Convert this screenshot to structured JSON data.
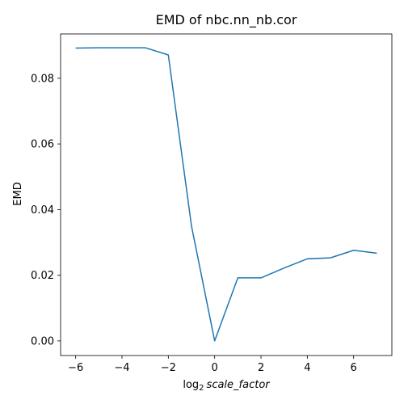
{
  "chart_data": {
    "type": "line",
    "title": "EMD of nbc.nn_nb.cor",
    "xlabel": {
      "prefix": "log",
      "subscript": "2",
      "italic": "scale_factor"
    },
    "ylabel": "EMD",
    "xlim": [
      -6.65,
      7.65
    ],
    "ylim": [
      -0.00445,
      0.0935
    ],
    "xticks": [
      -6,
      -4,
      -2,
      0,
      2,
      4,
      6
    ],
    "xtick_labels": [
      "−6",
      "−4",
      "−2",
      "0",
      "2",
      "4",
      "6"
    ],
    "yticks": [
      0.0,
      0.02,
      0.04,
      0.06,
      0.08
    ],
    "ytick_labels": [
      "0.00",
      "0.02",
      "0.04",
      "0.06",
      "0.08"
    ],
    "grid": false,
    "series": [
      {
        "color": "#1f77b4",
        "x": [
          -6,
          -5,
          -4,
          -3,
          -2,
          -1,
          0,
          1,
          2,
          3,
          4,
          5,
          6,
          7
        ],
        "y": [
          0.0892,
          0.0893,
          0.0893,
          0.0893,
          0.0871,
          0.035,
          0.0,
          0.0192,
          0.0192,
          0.0222,
          0.025,
          0.0253,
          0.0276,
          0.0267
        ]
      }
    ]
  }
}
